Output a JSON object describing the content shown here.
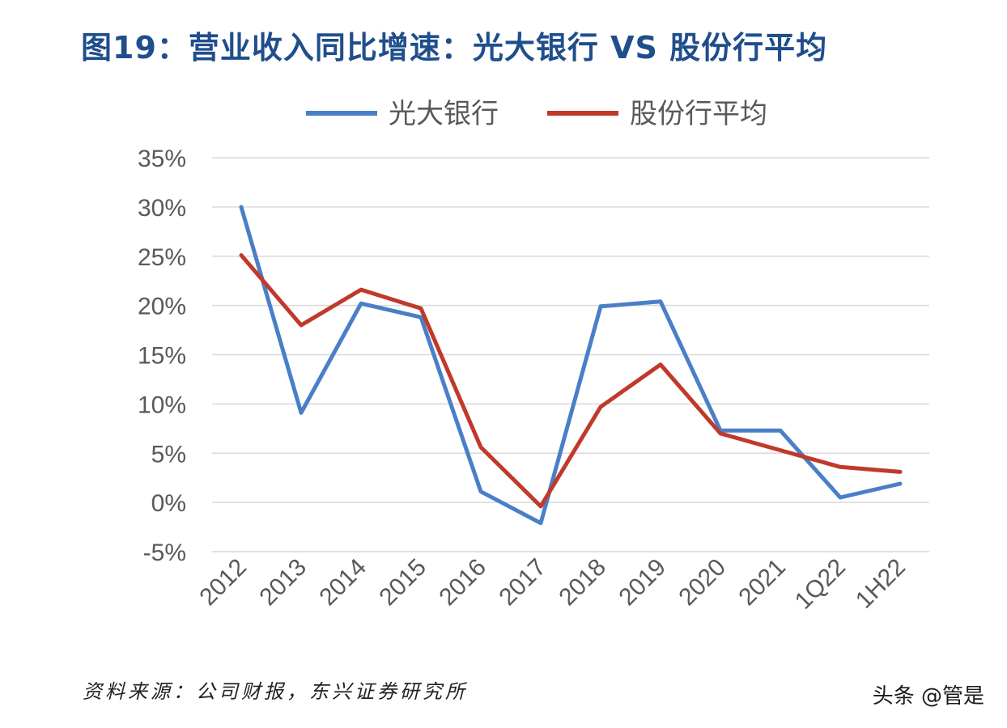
{
  "title": "图19：营业收入同比增速：光大银行 VS 股份行平均",
  "source": "资料来源：公司财报，东兴证券研究所",
  "watermark": "头条 @管是",
  "chart_data": {
    "type": "line",
    "title": "",
    "xlabel": "",
    "ylabel": "",
    "categories": [
      "2012",
      "2013",
      "2014",
      "2015",
      "2016",
      "2017",
      "2018",
      "2019",
      "2020",
      "2021",
      "1Q22",
      "1H22"
    ],
    "yticks": [
      "-5%",
      "0%",
      "5%",
      "10%",
      "15%",
      "20%",
      "25%",
      "30%",
      "35%"
    ],
    "ylim": [
      -5,
      35
    ],
    "grid": true,
    "legend_position": "top-center",
    "series": [
      {
        "name": "光大银行",
        "color": "#4a7fc8",
        "values": [
          30.0,
          9.1,
          20.2,
          18.8,
          1.1,
          -2.1,
          19.9,
          20.4,
          7.3,
          7.3,
          0.5,
          1.9
        ]
      },
      {
        "name": "股份行平均",
        "color": "#c0392b",
        "values": [
          25.1,
          18.0,
          21.6,
          19.7,
          5.6,
          -0.4,
          9.7,
          14.0,
          7.0,
          5.3,
          3.6,
          3.1
        ]
      }
    ]
  }
}
